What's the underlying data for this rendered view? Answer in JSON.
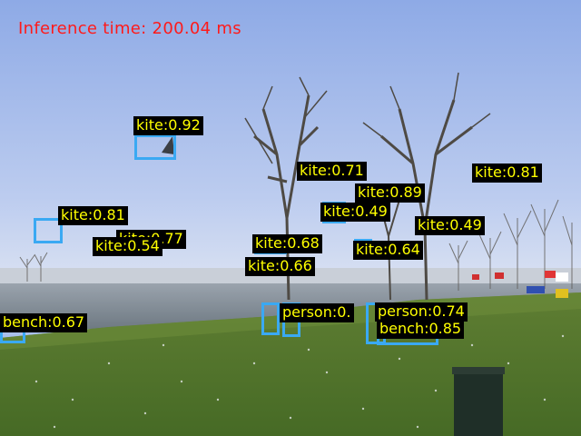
{
  "inference": {
    "label": "Inference time: 200.04 ms"
  },
  "colors": {
    "box": "#3aa9f3",
    "label_bg": "#000000",
    "label_text": "#ffff00",
    "inference_text": "#ff1a1a"
  },
  "detections": [
    {
      "label": "kite:0.92"
    },
    {
      "label": "kite:0.71"
    },
    {
      "label": "kite:0.81"
    },
    {
      "label": "kite:0.89"
    },
    {
      "label": "kite:0.49"
    },
    {
      "label": "kite:0.49"
    },
    {
      "label": "kite:0.81"
    },
    {
      "label": "kite:0.77"
    },
    {
      "label": "kite:0.54"
    },
    {
      "label": "kite:0.68"
    },
    {
      "label": "kite:0.64"
    },
    {
      "label": "kite:0.66"
    },
    {
      "label": "bench:0.67"
    },
    {
      "label": "person:0.74"
    },
    {
      "label": "person:0."
    },
    {
      "label": "bench:0.85"
    }
  ]
}
